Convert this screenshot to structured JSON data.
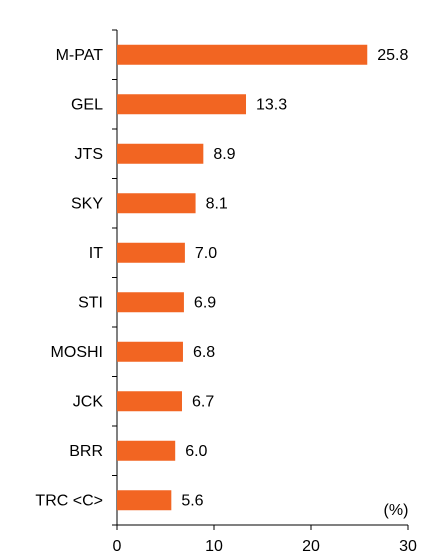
{
  "chart_data": {
    "type": "bar",
    "orientation": "horizontal",
    "categories": [
      "M-PAT",
      "GEL",
      "JTS",
      "SKY",
      "IT",
      "STI",
      "MOSHI",
      "JCK",
      "BRR",
      "TRC <C>"
    ],
    "values": [
      25.8,
      13.3,
      8.9,
      8.1,
      7.0,
      6.9,
      6.8,
      6.7,
      6.0,
      5.6
    ],
    "value_labels": [
      "25.8",
      "13.3",
      "8.9",
      "8.1",
      "7.0",
      "6.9",
      "6.8",
      "6.7",
      "6.0",
      "5.6"
    ],
    "color": "#f26522",
    "xlim": [
      0,
      30
    ],
    "xticks": [
      0,
      10,
      20,
      30
    ],
    "xlabel": "(%)"
  }
}
